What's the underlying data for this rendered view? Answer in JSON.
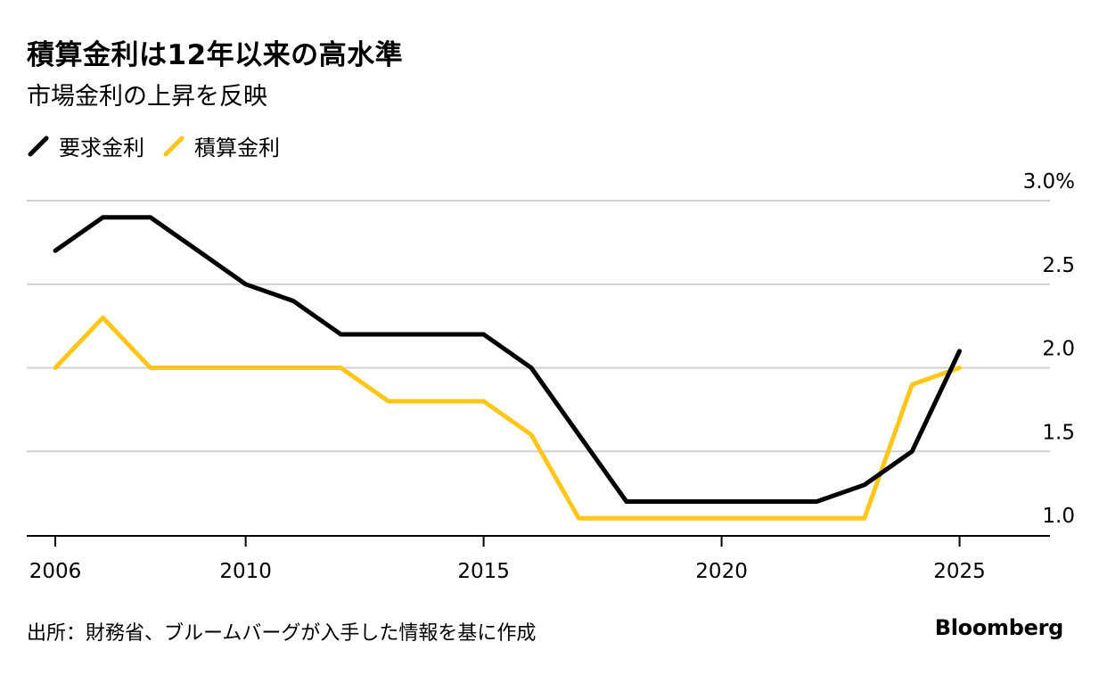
{
  "title": "積算金利は12年以来の高水準",
  "subtitle": "市場金利の上昇を反映",
  "source": "出所：財務省、ブルームバーグが入手した情報を基に作成",
  "brand": "Bloomberg",
  "colors": {
    "black_series": "#000000",
    "yellow_series": "#ffc61a",
    "grid": "#d0d0d0",
    "axis": "#000000"
  },
  "chart_data": {
    "type": "line",
    "title": "積算金利は12年以来の高水準",
    "subtitle": "市場金利の上昇を反映",
    "xlabel": "",
    "ylabel": "",
    "xlim": [
      2005.4,
      2026.9
    ],
    "ylim": [
      0.9,
      3.0
    ],
    "grid": true,
    "legend_position": "top-left",
    "x_ticks": [
      2006,
      2010,
      2015,
      2020,
      2025
    ],
    "x_tick_labels": [
      "2006",
      "2010",
      "2015",
      "2020",
      "2025"
    ],
    "y_ticks": [
      1.0,
      1.5,
      2.0,
      2.5,
      3.0
    ],
    "y_tick_labels": [
      "1.0",
      "1.5",
      "2.0",
      "2.5",
      "3.0%"
    ],
    "x": [
      2006,
      2007,
      2008,
      2009,
      2010,
      2011,
      2012,
      2013,
      2014,
      2015,
      2016,
      2017,
      2018,
      2019,
      2020,
      2021,
      2022,
      2023,
      2024,
      2025
    ],
    "series": [
      {
        "name": "要求金利",
        "color": "#000000",
        "values": [
          2.7,
          2.9,
          2.9,
          2.7,
          2.5,
          2.4,
          2.2,
          2.2,
          2.2,
          2.2,
          2.0,
          1.6,
          1.2,
          1.2,
          1.2,
          1.2,
          1.2,
          1.3,
          1.5,
          2.1
        ]
      },
      {
        "name": "積算金利",
        "color": "#ffc61a",
        "values": [
          2.0,
          2.3,
          2.0,
          2.0,
          2.0,
          2.0,
          2.0,
          1.8,
          1.8,
          1.8,
          1.6,
          1.1,
          1.1,
          1.1,
          1.1,
          1.1,
          1.1,
          1.1,
          1.9,
          2.0
        ]
      }
    ]
  }
}
